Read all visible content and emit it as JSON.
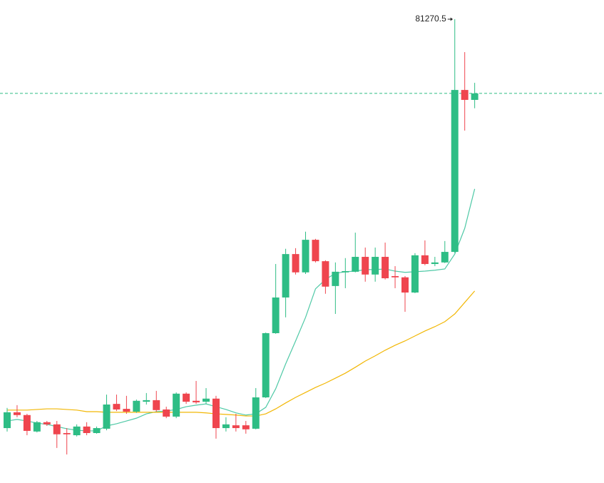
{
  "chart_data": {
    "type": "candlestick",
    "up_color": "#2ebd85",
    "down_color": "#ef454e",
    "ylim": [
      66320,
      81890
    ],
    "open": [
      68090,
      68600,
      68510,
      67980,
      68280,
      68210,
      67930,
      67860,
      68140,
      67930,
      68070,
      68870,
      68710,
      68620,
      68940,
      68990,
      68690,
      68460,
      69200,
      68970,
      68940,
      69040,
      68090,
      68180,
      68180,
      68070,
      69080,
      71150,
      72300,
      73700,
      73110,
      74160,
      73470,
      72670,
      73110,
      73130,
      73610,
      73040,
      73610,
      72990,
      72950,
      72460,
      73660,
      73380,
      73430,
      73770,
      78990,
      78670
    ],
    "high": [
      68740,
      68830,
      68550,
      68320,
      68320,
      68320,
      68090,
      68210,
      68280,
      68140,
      69170,
      69170,
      69130,
      69010,
      69220,
      69290,
      68780,
      69240,
      69240,
      69610,
      69380,
      69130,
      68440,
      68550,
      68320,
      69380,
      71170,
      73380,
      73870,
      73890,
      74420,
      74190,
      73500,
      73430,
      73570,
      74390,
      73910,
      73910,
      74070,
      73310,
      72990,
      73730,
      74140,
      73610,
      74120,
      81270.5,
      80210,
      79220
    ],
    "low": [
      67980,
      68440,
      67860,
      67950,
      68160,
      67450,
      67240,
      67820,
      67860,
      67910,
      68020,
      68640,
      68550,
      68580,
      68850,
      68620,
      68410,
      68410,
      68870,
      68870,
      68870,
      67750,
      67980,
      67980,
      67910,
      68050,
      69060,
      71130,
      71660,
      73040,
      73060,
      73430,
      72420,
      71770,
      72600,
      73110,
      72810,
      72810,
      72880,
      72600,
      71840,
      72440,
      73340,
      73310,
      73410,
      73730,
      77680,
      78400
    ],
    "close": [
      68600,
      68510,
      68000,
      68280,
      68210,
      67890,
      67890,
      68140,
      67930,
      68090,
      68850,
      68690,
      68620,
      68970,
      68990,
      68670,
      68460,
      69200,
      68940,
      68920,
      69040,
      68090,
      68210,
      68090,
      68050,
      69080,
      71150,
      72300,
      73700,
      73110,
      74160,
      73470,
      72650,
      73130,
      73150,
      73610,
      73040,
      73610,
      72920,
      72950,
      72460,
      73660,
      73380,
      73430,
      73770,
      78990,
      78670,
      78880
    ],
    "moving_averages": [
      {
        "color": "#4fc9a6",
        "values": [
          68320,
          68370,
          68320,
          68250,
          68210,
          68140,
          68070,
          68020,
          68000,
          68000,
          68160,
          68230,
          68320,
          68410,
          68550,
          68620,
          68640,
          68690,
          68780,
          68830,
          68870,
          68780,
          68690,
          68580,
          68510,
          68550,
          68760,
          69360,
          70160,
          70900,
          71660,
          72580,
          72880,
          73080,
          73130,
          73150,
          73200,
          73200,
          73220,
          73150,
          73110,
          73130,
          73150,
          73180,
          73220,
          73700,
          74530,
          75800
        ]
      },
      {
        "color": "#f2b705",
        "values": [
          68670,
          68670,
          68670,
          68690,
          68710,
          68710,
          68690,
          68670,
          68620,
          68620,
          68600,
          68600,
          68600,
          68600,
          68600,
          68600,
          68600,
          68600,
          68600,
          68600,
          68580,
          68550,
          68530,
          68510,
          68480,
          68480,
          68550,
          68710,
          68900,
          69080,
          69240,
          69400,
          69540,
          69700,
          69860,
          70050,
          70250,
          70420,
          70600,
          70760,
          70900,
          71060,
          71220,
          71360,
          71520,
          71770,
          72140,
          72510
        ]
      }
    ]
  }
}
